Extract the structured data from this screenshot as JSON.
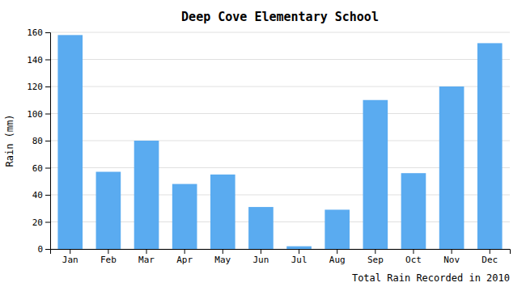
{
  "chart_data": {
    "type": "bar",
    "title": "Deep Cove Elementary School",
    "xlabel": "Total Rain Recorded in 2010",
    "ylabel": "Rain (mm)",
    "categories": [
      "Jan",
      "Feb",
      "Mar",
      "Apr",
      "May",
      "Jun",
      "Jul",
      "Aug",
      "Sep",
      "Oct",
      "Nov",
      "Dec"
    ],
    "values": [
      158,
      57,
      80,
      48,
      55,
      31,
      2,
      29,
      110,
      56,
      120,
      152
    ],
    "color": "#5aabf0",
    "ylim": [
      0,
      160
    ],
    "yticks": [
      0,
      20,
      40,
      60,
      80,
      100,
      120,
      140,
      160
    ],
    "grid": true
  }
}
